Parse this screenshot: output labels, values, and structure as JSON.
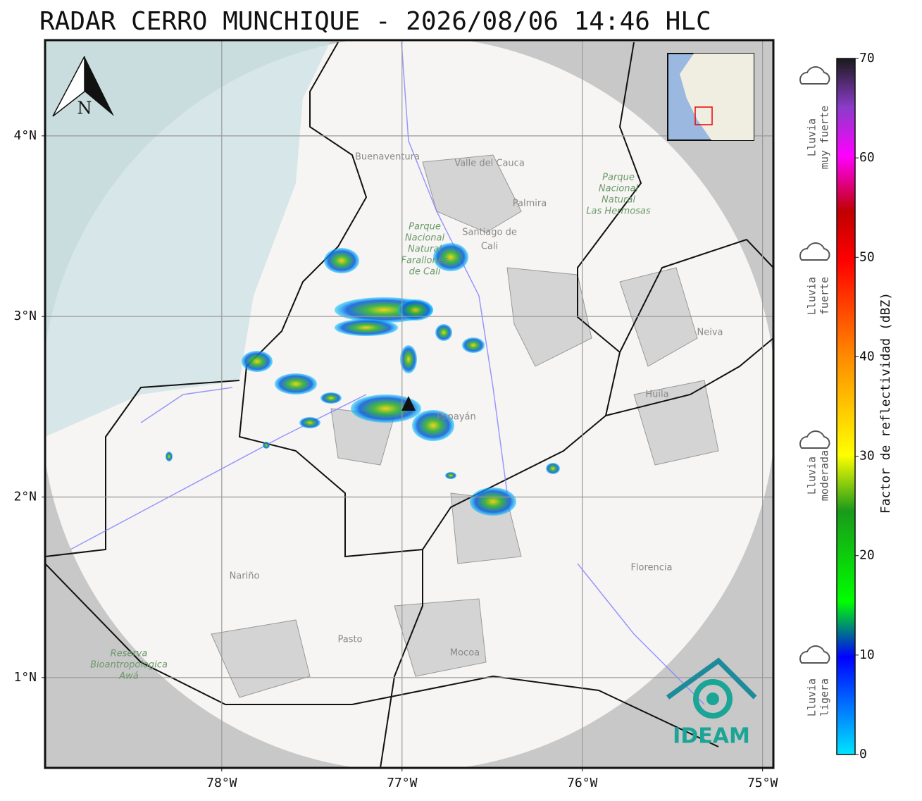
{
  "title": "RADAR CERRO MUNCHIQUE - 2026/08/06 14:46 HLC",
  "map": {
    "xlim": [
      -78.98,
      -74.94
    ],
    "ylim": [
      0.5,
      4.53
    ],
    "xticks": [
      {
        "value": -78,
        "label": "78°W"
      },
      {
        "value": -77,
        "label": "77°W"
      },
      {
        "value": -76,
        "label": "76°W"
      },
      {
        "value": -75,
        "label": "75°W"
      }
    ],
    "yticks": [
      {
        "value": 1,
        "label": "1°N"
      },
      {
        "value": 2,
        "label": "2°N"
      },
      {
        "value": 3,
        "label": "3°N"
      },
      {
        "value": 4,
        "label": "4°N"
      }
    ],
    "grid": true,
    "north_label": "N",
    "places": [
      {
        "lines": [
          "Buenaventura"
        ]
      },
      {
        "lines": [
          "Valle del Cauca"
        ]
      },
      {
        "lines": [
          "Palmira"
        ]
      },
      {
        "lines": [
          "Santiago de",
          "Cali"
        ]
      },
      {
        "lines": [
          "Popayán"
        ]
      },
      {
        "lines": [
          "Neiva"
        ]
      },
      {
        "lines": [
          "Huila"
        ]
      },
      {
        "lines": [
          "Florencia"
        ]
      },
      {
        "lines": [
          "Nariño"
        ]
      },
      {
        "lines": [
          "Pasto"
        ]
      },
      {
        "lines": [
          "Mocoa"
        ]
      }
    ],
    "parks": [
      {
        "lines": [
          "Parque",
          "Nacional",
          "Natural",
          "Farallones",
          "de Cali"
        ]
      },
      {
        "lines": [
          "Parque",
          "Nacional",
          "Natural",
          "Las Hermosas"
        ]
      },
      {
        "lines": [
          "Reserva",
          "Bioantropologica",
          "Awá"
        ]
      }
    ]
  },
  "colorbar": {
    "label": "Factor de reflectividad (dBZ)",
    "lim": [
      0,
      70
    ],
    "ticks": [
      0,
      10,
      20,
      30,
      40,
      50,
      60,
      70
    ]
  },
  "rain_categories": [
    {
      "lines": [
        "Lluvia",
        "muy fuerte"
      ]
    },
    {
      "lines": [
        "Lluvia",
        "fuerte"
      ]
    },
    {
      "lines": [
        "Lluvia",
        "moderada"
      ]
    },
    {
      "lines": [
        "Lluvia",
        "ligera"
      ]
    }
  ],
  "logo": "IDEAM"
}
